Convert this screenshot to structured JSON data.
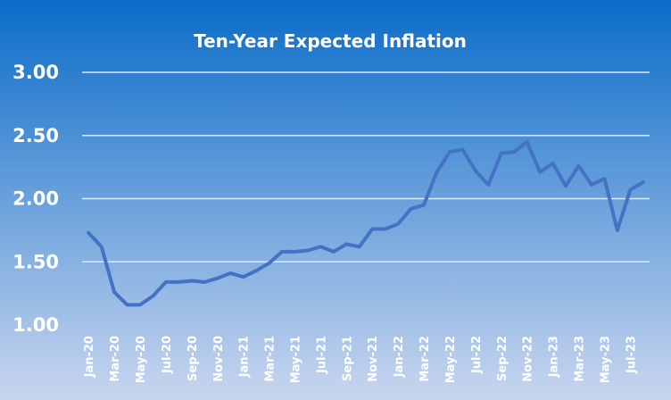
{
  "colors": {
    "background_top": "#0a6cc8",
    "background_bottom": "#c9d6ef",
    "line": "#4472c4",
    "text": "#ffffff",
    "grid": "#dfe9f6"
  },
  "chart_data": {
    "type": "line",
    "title": "Ten-Year Expected Inflation",
    "xlabel": "",
    "ylabel": "",
    "ylim": [
      1.0,
      3.0
    ],
    "yticks": [
      "1.00",
      "1.50",
      "2.00",
      "2.50",
      "3.00"
    ],
    "grid": true,
    "legend": "none",
    "x": [
      "Jan-20",
      "Feb-20",
      "Mar-20",
      "Apr-20",
      "May-20",
      "Jun-20",
      "Jul-20",
      "Aug-20",
      "Sep-20",
      "Oct-20",
      "Nov-20",
      "Dec-20",
      "Jan-21",
      "Feb-21",
      "Mar-21",
      "Apr-21",
      "May-21",
      "Jun-21",
      "Jul-21",
      "Aug-21",
      "Sep-21",
      "Oct-21",
      "Nov-21",
      "Dec-21",
      "Jan-22",
      "Feb-22",
      "Mar-22",
      "Apr-22",
      "May-22",
      "Jun-22",
      "Jul-22",
      "Aug-22",
      "Sep-22",
      "Oct-22",
      "Nov-22",
      "Dec-22",
      "Jan-23",
      "Feb-23",
      "Mar-23",
      "Apr-23",
      "May-23",
      "Jun-23",
      "Jul-23",
      "Aug-23"
    ],
    "xtick_labels": [
      "Jan-20",
      "Mar-20",
      "May-20",
      "Jul-20",
      "Sep-20",
      "Nov-20",
      "Jan-21",
      "Mar-21",
      "May-21",
      "Jul-21",
      "Sep-21",
      "Nov-21",
      "Jan-22",
      "Mar-22",
      "May-22",
      "Jul-22",
      "Sep-22",
      "Nov-22",
      "Jan-23",
      "Mar-23",
      "May-23",
      "Jul-23"
    ],
    "series": [
      {
        "values": [
          1.73,
          1.62,
          1.26,
          1.16,
          1.16,
          1.23,
          1.34,
          1.34,
          1.35,
          1.34,
          1.37,
          1.41,
          1.38,
          1.43,
          1.49,
          1.58,
          1.58,
          1.59,
          1.62,
          1.58,
          1.64,
          1.62,
          1.76,
          1.76,
          1.8,
          1.92,
          1.95,
          2.21,
          2.37,
          2.39,
          2.22,
          2.11,
          2.36,
          2.37,
          2.45,
          2.21,
          2.28,
          2.1,
          2.26,
          2.11,
          2.16,
          1.75,
          2.07,
          2.13
        ]
      }
    ]
  }
}
